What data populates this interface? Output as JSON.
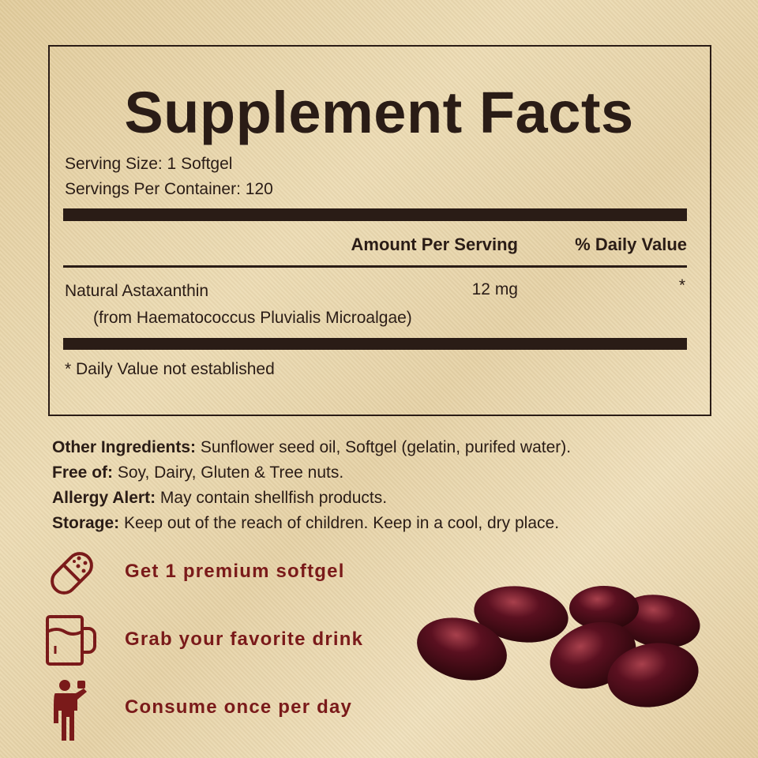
{
  "facts": {
    "title": "Supplement Facts",
    "serving_size": "Serving Size: 1 Softgel",
    "servings_per_container": "Servings Per Container: 120",
    "col_amount": "Amount Per Serving",
    "col_dv": "% Daily Value",
    "ingredient": {
      "name": "Natural Astaxanthin",
      "source": "(from Haematococcus Pluvialis Microalgae)",
      "amount": "12 mg",
      "dv": "*"
    },
    "footnote": "* Daily Value not established"
  },
  "info": [
    {
      "label": "Other Ingredients:",
      "text": " Sunflower seed oil, Softgel (gelatin, purifed water)."
    },
    {
      "label": "Free of:",
      "text": " Soy, Dairy, Gluten & Tree nuts."
    },
    {
      "label": "Allergy Alert:",
      "text": " May contain shellfish products."
    },
    {
      "label": "Storage:",
      "text": " Keep out of the reach of children. Keep in a cool, dry place."
    }
  ],
  "steps": [
    {
      "icon": "capsule-icon",
      "text": "Get 1 premium softgel"
    },
    {
      "icon": "mug-icon",
      "text": "Grab your favorite drink"
    },
    {
      "icon": "person-drinking-icon",
      "text": "Consume once per day"
    }
  ],
  "colors": {
    "text": "#2a1c16",
    "accent": "#7a1a1a",
    "softgel": "#4a0d18"
  }
}
